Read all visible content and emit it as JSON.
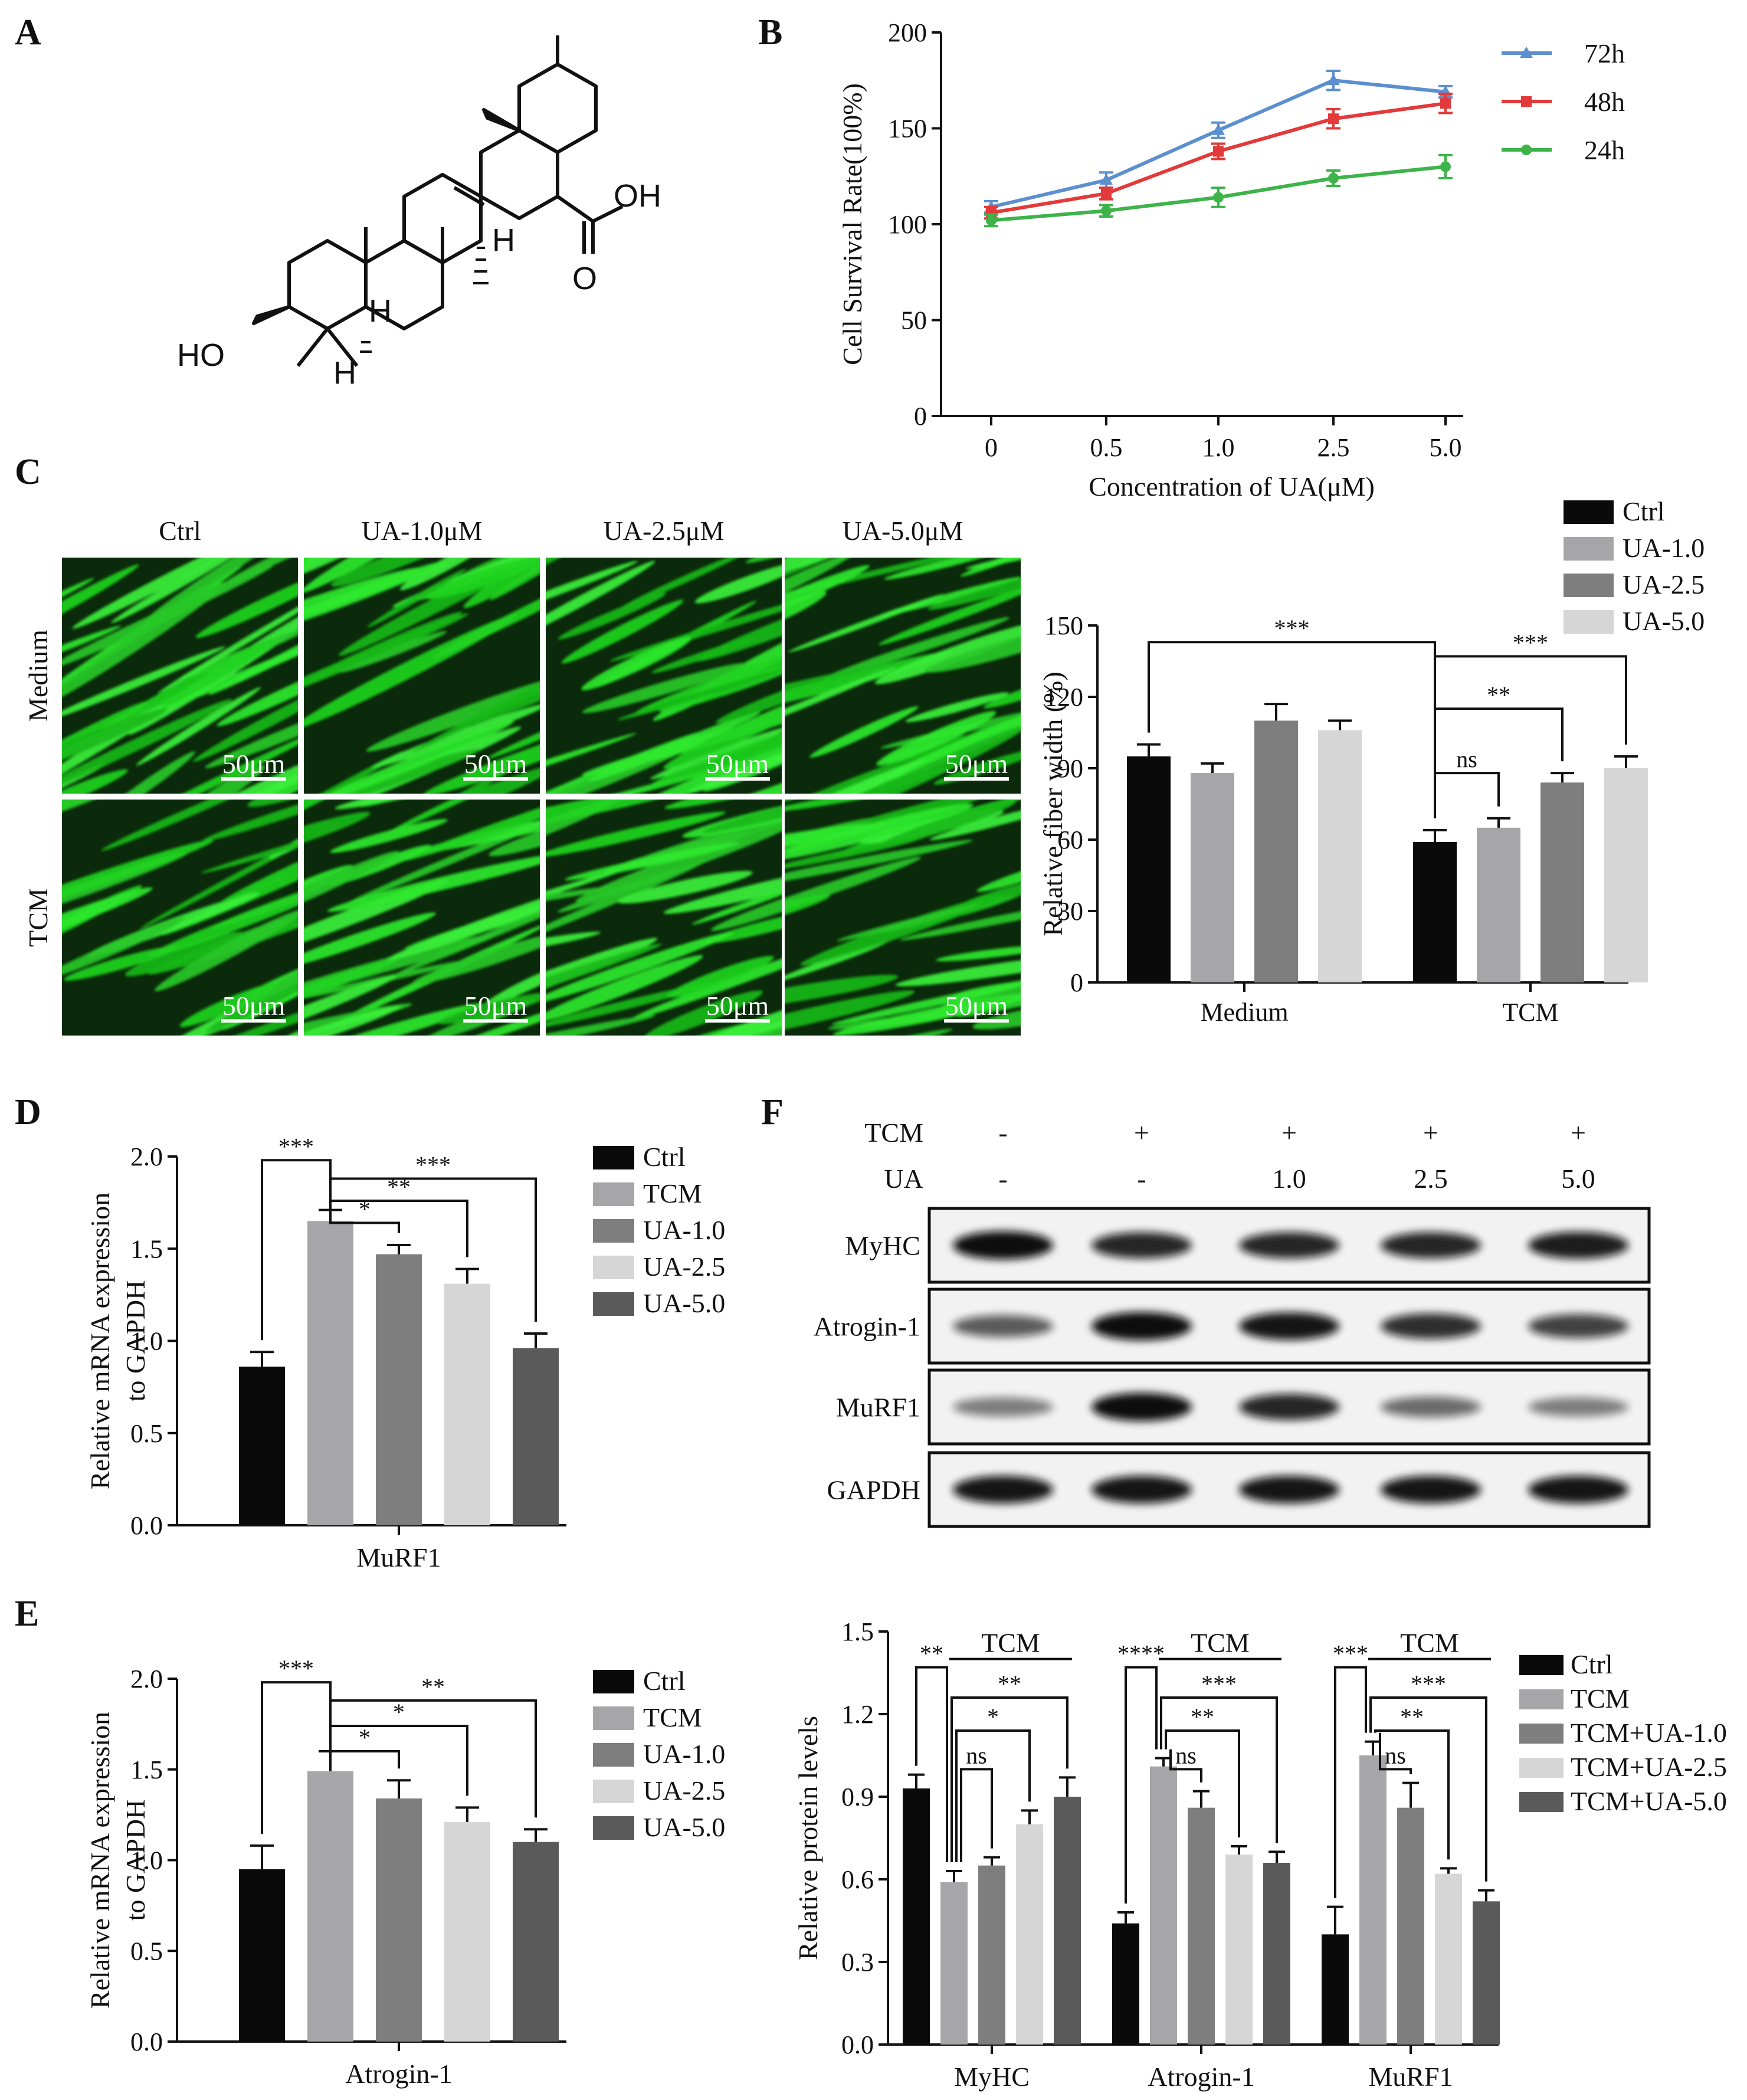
{
  "panel_labels": {
    "A": "A",
    "B": "B",
    "C": "C",
    "D": "D",
    "E": "E",
    "F": "F"
  },
  "structure": {
    "labels": [
      "HO",
      "OH",
      "O",
      "H",
      "H",
      "H"
    ]
  },
  "chart_data": [
    {
      "id": "B",
      "type": "line",
      "ylabel": "Cell Survival Rate(100%)",
      "xlabel": "Concentration of UA(μM)",
      "categories": [
        "0",
        "0.5",
        "1.0",
        "2.5",
        "5.0"
      ],
      "ylim": [
        0,
        200
      ],
      "yticks": [
        0,
        50,
        100,
        150,
        200
      ],
      "legend_position": "top-right",
      "series": [
        {
          "name": "72h",
          "color": "#5b8fd0",
          "marker": "triangle",
          "values": [
            109,
            123,
            149,
            175,
            169
          ],
          "errors": [
            3,
            4,
            4,
            5,
            3
          ]
        },
        {
          "name": "48h",
          "color": "#e23a3a",
          "marker": "square",
          "values": [
            106,
            116,
            138,
            155,
            163
          ],
          "errors": [
            3,
            3,
            4,
            5,
            5
          ]
        },
        {
          "name": "24h",
          "color": "#3db34a",
          "marker": "circle",
          "values": [
            102,
            107,
            114,
            124,
            130
          ],
          "errors": [
            3,
            3,
            5,
            4,
            6
          ]
        }
      ]
    },
    {
      "id": "C",
      "type": "bar",
      "ylabel": "Relative fiber width (%)",
      "categories": [
        "Medium",
        "TCM"
      ],
      "ylim": [
        0,
        150
      ],
      "yticks": [
        0,
        30,
        60,
        90,
        120,
        150
      ],
      "legend_position": "top-right",
      "series": [
        {
          "name": "Ctrl",
          "color": "#0a0a0a",
          "values": [
            95,
            59
          ],
          "errors": [
            5,
            5
          ]
        },
        {
          "name": "UA-1.0",
          "color": "#a6a6a8",
          "values": [
            88,
            65
          ],
          "errors": [
            4,
            4
          ]
        },
        {
          "name": "UA-2.5",
          "color": "#7e7e7e",
          "values": [
            110,
            84
          ],
          "errors": [
            7,
            4
          ]
        },
        {
          "name": "UA-5.0",
          "color": "#d6d6d6",
          "values": [
            106,
            90
          ],
          "errors": [
            4,
            5
          ]
        }
      ],
      "significance": [
        "***",
        "***",
        "**",
        "ns"
      ]
    },
    {
      "id": "D",
      "type": "bar",
      "ylabel_line1": "Relative mRNA expression",
      "ylabel_line2": "to GAPDH",
      "xlabel": "MuRF1",
      "ylim": [
        0,
        2.0
      ],
      "yticks": [
        "0.0",
        "0.5",
        "1.0",
        "1.5",
        "2.0"
      ],
      "legend_position": "right",
      "bars": [
        {
          "name": "Ctrl",
          "color": "#0a0a0a",
          "value": 0.86,
          "error": 0.08
        },
        {
          "name": "TCM",
          "color": "#a6a6a8",
          "value": 1.65,
          "error": 0.06
        },
        {
          "name": "UA-1.0",
          "color": "#7e7e7e",
          "value": 1.47,
          "error": 0.05
        },
        {
          "name": "UA-2.5",
          "color": "#d6d6d6",
          "value": 1.31,
          "error": 0.08
        },
        {
          "name": "UA-5.0",
          "color": "#5a5a5a",
          "value": 0.96,
          "error": 0.08
        }
      ],
      "significance": [
        "***",
        "***",
        "**",
        "*"
      ]
    },
    {
      "id": "E",
      "type": "bar",
      "ylabel_line1": "Relative mRNA expression",
      "ylabel_line2": "to GAPDH",
      "xlabel": "Atrogin-1",
      "ylim": [
        0,
        2.0
      ],
      "yticks": [
        "0.0",
        "0.5",
        "1.0",
        "1.5",
        "2.0"
      ],
      "legend_position": "right",
      "bars": [
        {
          "name": "Ctrl",
          "color": "#0a0a0a",
          "value": 0.95,
          "error": 0.13
        },
        {
          "name": "TCM",
          "color": "#a6a6a8",
          "value": 1.49,
          "error": 0.11
        },
        {
          "name": "UA-1.0",
          "color": "#7e7e7e",
          "value": 1.34,
          "error": 0.1
        },
        {
          "name": "UA-2.5",
          "color": "#d6d6d6",
          "value": 1.21,
          "error": 0.08
        },
        {
          "name": "UA-5.0",
          "color": "#5a5a5a",
          "value": 1.1,
          "error": 0.07
        }
      ],
      "significance": [
        "***",
        "**",
        "*",
        "*"
      ]
    },
    {
      "id": "F",
      "type": "bar",
      "ylabel": "Relative protein levels",
      "categories": [
        "MyHC",
        "Atrogin-1",
        "MuRF1"
      ],
      "group_title": "TCM",
      "ylim": [
        0,
        1.5
      ],
      "yticks": [
        "0.0",
        "0.3",
        "0.6",
        "0.9",
        "1.2",
        "1.5"
      ],
      "legend_position": "right",
      "series": [
        {
          "name": "Ctrl",
          "color": "#0a0a0a",
          "values": [
            0.93,
            0.44,
            0.4
          ],
          "errors": [
            0.05,
            0.04,
            0.1
          ]
        },
        {
          "name": "TCM",
          "color": "#a6a6a8",
          "values": [
            0.59,
            1.01,
            1.05
          ],
          "errors": [
            0.04,
            0.03,
            0.05
          ]
        },
        {
          "name": "TCM+UA-1.0",
          "color": "#7e7e7e",
          "values": [
            0.65,
            0.86,
            0.86
          ],
          "errors": [
            0.03,
            0.06,
            0.09
          ]
        },
        {
          "name": "TCM+UA-2.5",
          "color": "#d6d6d6",
          "values": [
            0.8,
            0.69,
            0.62
          ],
          "errors": [
            0.05,
            0.03,
            0.02
          ]
        },
        {
          "name": "TCM+UA-5.0",
          "color": "#5a5a5a",
          "values": [
            0.9,
            0.66,
            0.52
          ],
          "errors": [
            0.07,
            0.04,
            0.04
          ]
        }
      ],
      "significance": {
        "MyHC": [
          "**",
          "**",
          "*",
          "ns"
        ],
        "Atrogin-1": [
          "****",
          "***",
          "**",
          "ns"
        ],
        "MuRF1": [
          "***",
          "***",
          "**",
          "ns"
        ]
      }
    }
  ],
  "micrographs": {
    "columns": [
      "Ctrl",
      "UA-1.0μM",
      "UA-2.5μM",
      "UA-5.0μM"
    ],
    "rows": [
      "Medium",
      "TCM"
    ],
    "scale_bar": "50μm"
  },
  "western_blot": {
    "header_rows": [
      {
        "label": "TCM",
        "values": [
          "-",
          "+",
          "+",
          "+",
          "+"
        ]
      },
      {
        "label": "UA",
        "values": [
          "-",
          "-",
          "1.0",
          "2.5",
          "5.0"
        ]
      }
    ],
    "bands": [
      "MyHC",
      "Atrogin-1",
      "MuRF1",
      "GAPDH"
    ]
  }
}
